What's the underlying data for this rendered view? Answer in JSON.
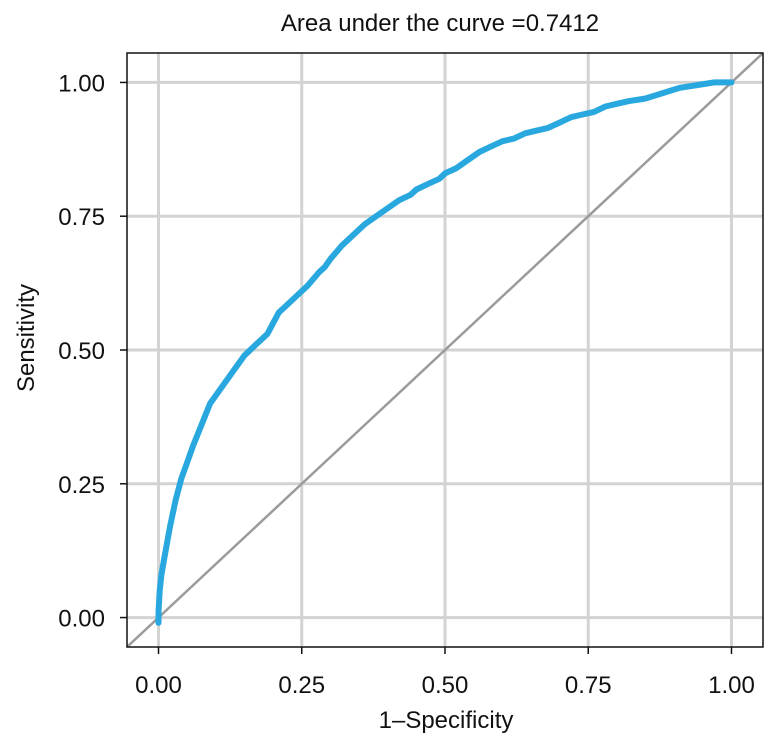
{
  "chart_data": {
    "type": "line",
    "title": "Area under the curve =0.7412",
    "xlabel": "1–Specificity",
    "ylabel": "Sensitivity",
    "xlim": [
      -0.055,
      1.055
    ],
    "ylim": [
      -0.055,
      1.055
    ],
    "x_ticks": [
      "0.00",
      "0.25",
      "0.50",
      "0.75",
      "1.00"
    ],
    "y_ticks": [
      "0.00",
      "0.25",
      "0.50",
      "0.75",
      "1.00"
    ],
    "grid": true,
    "series": [
      {
        "color": "#29a8df",
        "x": [
          0.0,
          0.0,
          0.002,
          0.005,
          0.01,
          0.015,
          0.02,
          0.03,
          0.04,
          0.05,
          0.06,
          0.075,
          0.09,
          0.11,
          0.13,
          0.15,
          0.17,
          0.19,
          0.2,
          0.21,
          0.22,
          0.24,
          0.26,
          0.28,
          0.29,
          0.3,
          0.32,
          0.34,
          0.36,
          0.38,
          0.4,
          0.42,
          0.44,
          0.45,
          0.47,
          0.49,
          0.5,
          0.52,
          0.54,
          0.56,
          0.58,
          0.6,
          0.62,
          0.64,
          0.66,
          0.68,
          0.7,
          0.72,
          0.74,
          0.76,
          0.78,
          0.8,
          0.82,
          0.85,
          0.88,
          0.91,
          0.94,
          0.97,
          1.0
        ],
        "y": [
          -0.01,
          0.01,
          0.05,
          0.08,
          0.11,
          0.14,
          0.17,
          0.22,
          0.26,
          0.29,
          0.32,
          0.36,
          0.4,
          0.43,
          0.46,
          0.49,
          0.51,
          0.53,
          0.55,
          0.57,
          0.58,
          0.6,
          0.62,
          0.645,
          0.655,
          0.67,
          0.695,
          0.715,
          0.735,
          0.75,
          0.765,
          0.78,
          0.79,
          0.8,
          0.81,
          0.82,
          0.83,
          0.84,
          0.855,
          0.87,
          0.88,
          0.89,
          0.895,
          0.905,
          0.91,
          0.915,
          0.925,
          0.935,
          0.94,
          0.945,
          0.955,
          0.96,
          0.965,
          0.97,
          0.98,
          0.99,
          0.995,
          1.0,
          1.0
        ]
      },
      {
        "color": "#9b9b9b",
        "x": [
          -0.055,
          1.055
        ],
        "y": [
          -0.055,
          1.055
        ]
      }
    ]
  }
}
